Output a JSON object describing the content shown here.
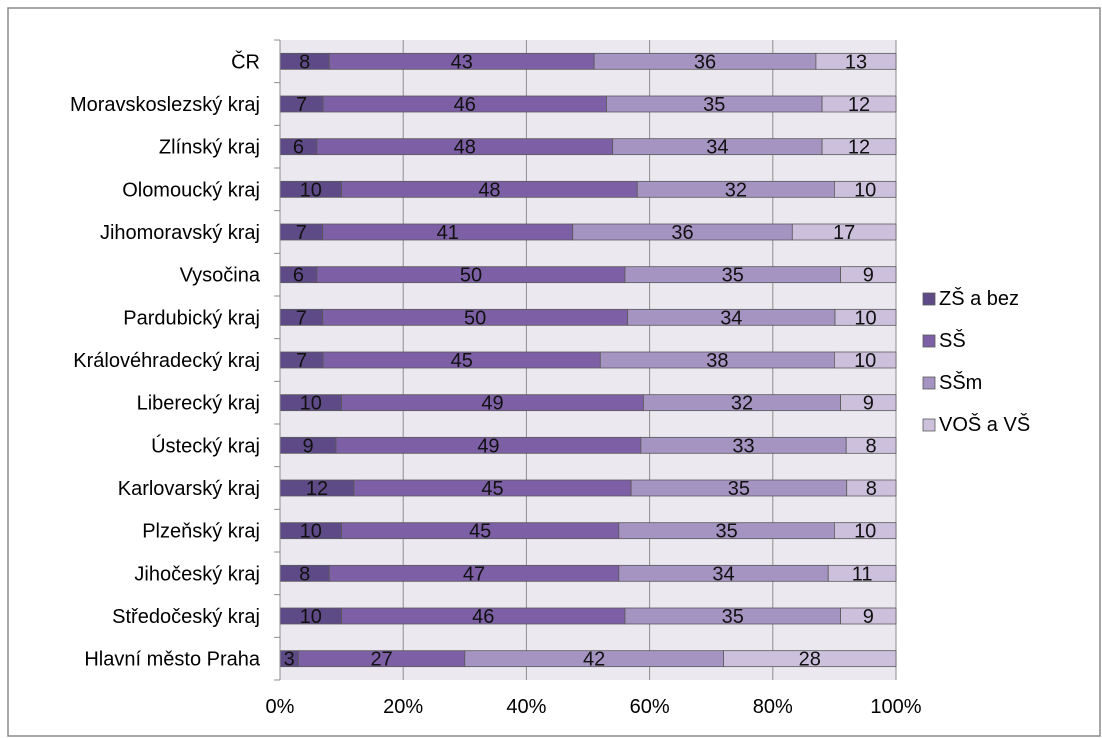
{
  "chart_data": {
    "type": "bar",
    "orientation": "horizontal",
    "stacked": "percent",
    "categories": [
      "ČR",
      "Moravskoslezský kraj",
      "Zlínský kraj",
      "Olomoucký kraj",
      "Jihomoravský kraj",
      "Vysočina",
      "Pardubický kraj",
      "Královéhradecký kraj",
      "Liberecký kraj",
      "Ústecký kraj",
      "Karlovarský kraj",
      "Plzeňský kraj",
      "Jihočeský kraj",
      "Středočeský kraj",
      "Hlavní město Praha"
    ],
    "series": [
      {
        "name": "ZŠ a bez",
        "color": "#5e4a87",
        "values": [
          8,
          7,
          6,
          10,
          7,
          6,
          7,
          7,
          10,
          9,
          12,
          10,
          8,
          10,
          3
        ]
      },
      {
        "name": "SŠ",
        "color": "#7d5fa6",
        "values": [
          43,
          46,
          48,
          48,
          41,
          50,
          50,
          45,
          49,
          49,
          45,
          45,
          47,
          46,
          27
        ]
      },
      {
        "name": "SŠm",
        "color": "#a593c2",
        "values": [
          36,
          35,
          34,
          32,
          36,
          35,
          34,
          38,
          32,
          33,
          35,
          35,
          34,
          35,
          42
        ]
      },
      {
        "name": "VOŠ a VŠ",
        "color": "#ccc0dc",
        "values": [
          13,
          12,
          12,
          10,
          17,
          9,
          10,
          10,
          9,
          8,
          8,
          10,
          11,
          9,
          28
        ]
      }
    ],
    "xlim": [
      0,
      100
    ],
    "x_ticks": [
      "0%",
      "20%",
      "40%",
      "60%",
      "80%",
      "100%"
    ],
    "grid": "vertical",
    "plot_background": "#ece8f0",
    "legend": "right",
    "title": "",
    "xlabel": "",
    "ylabel": ""
  }
}
